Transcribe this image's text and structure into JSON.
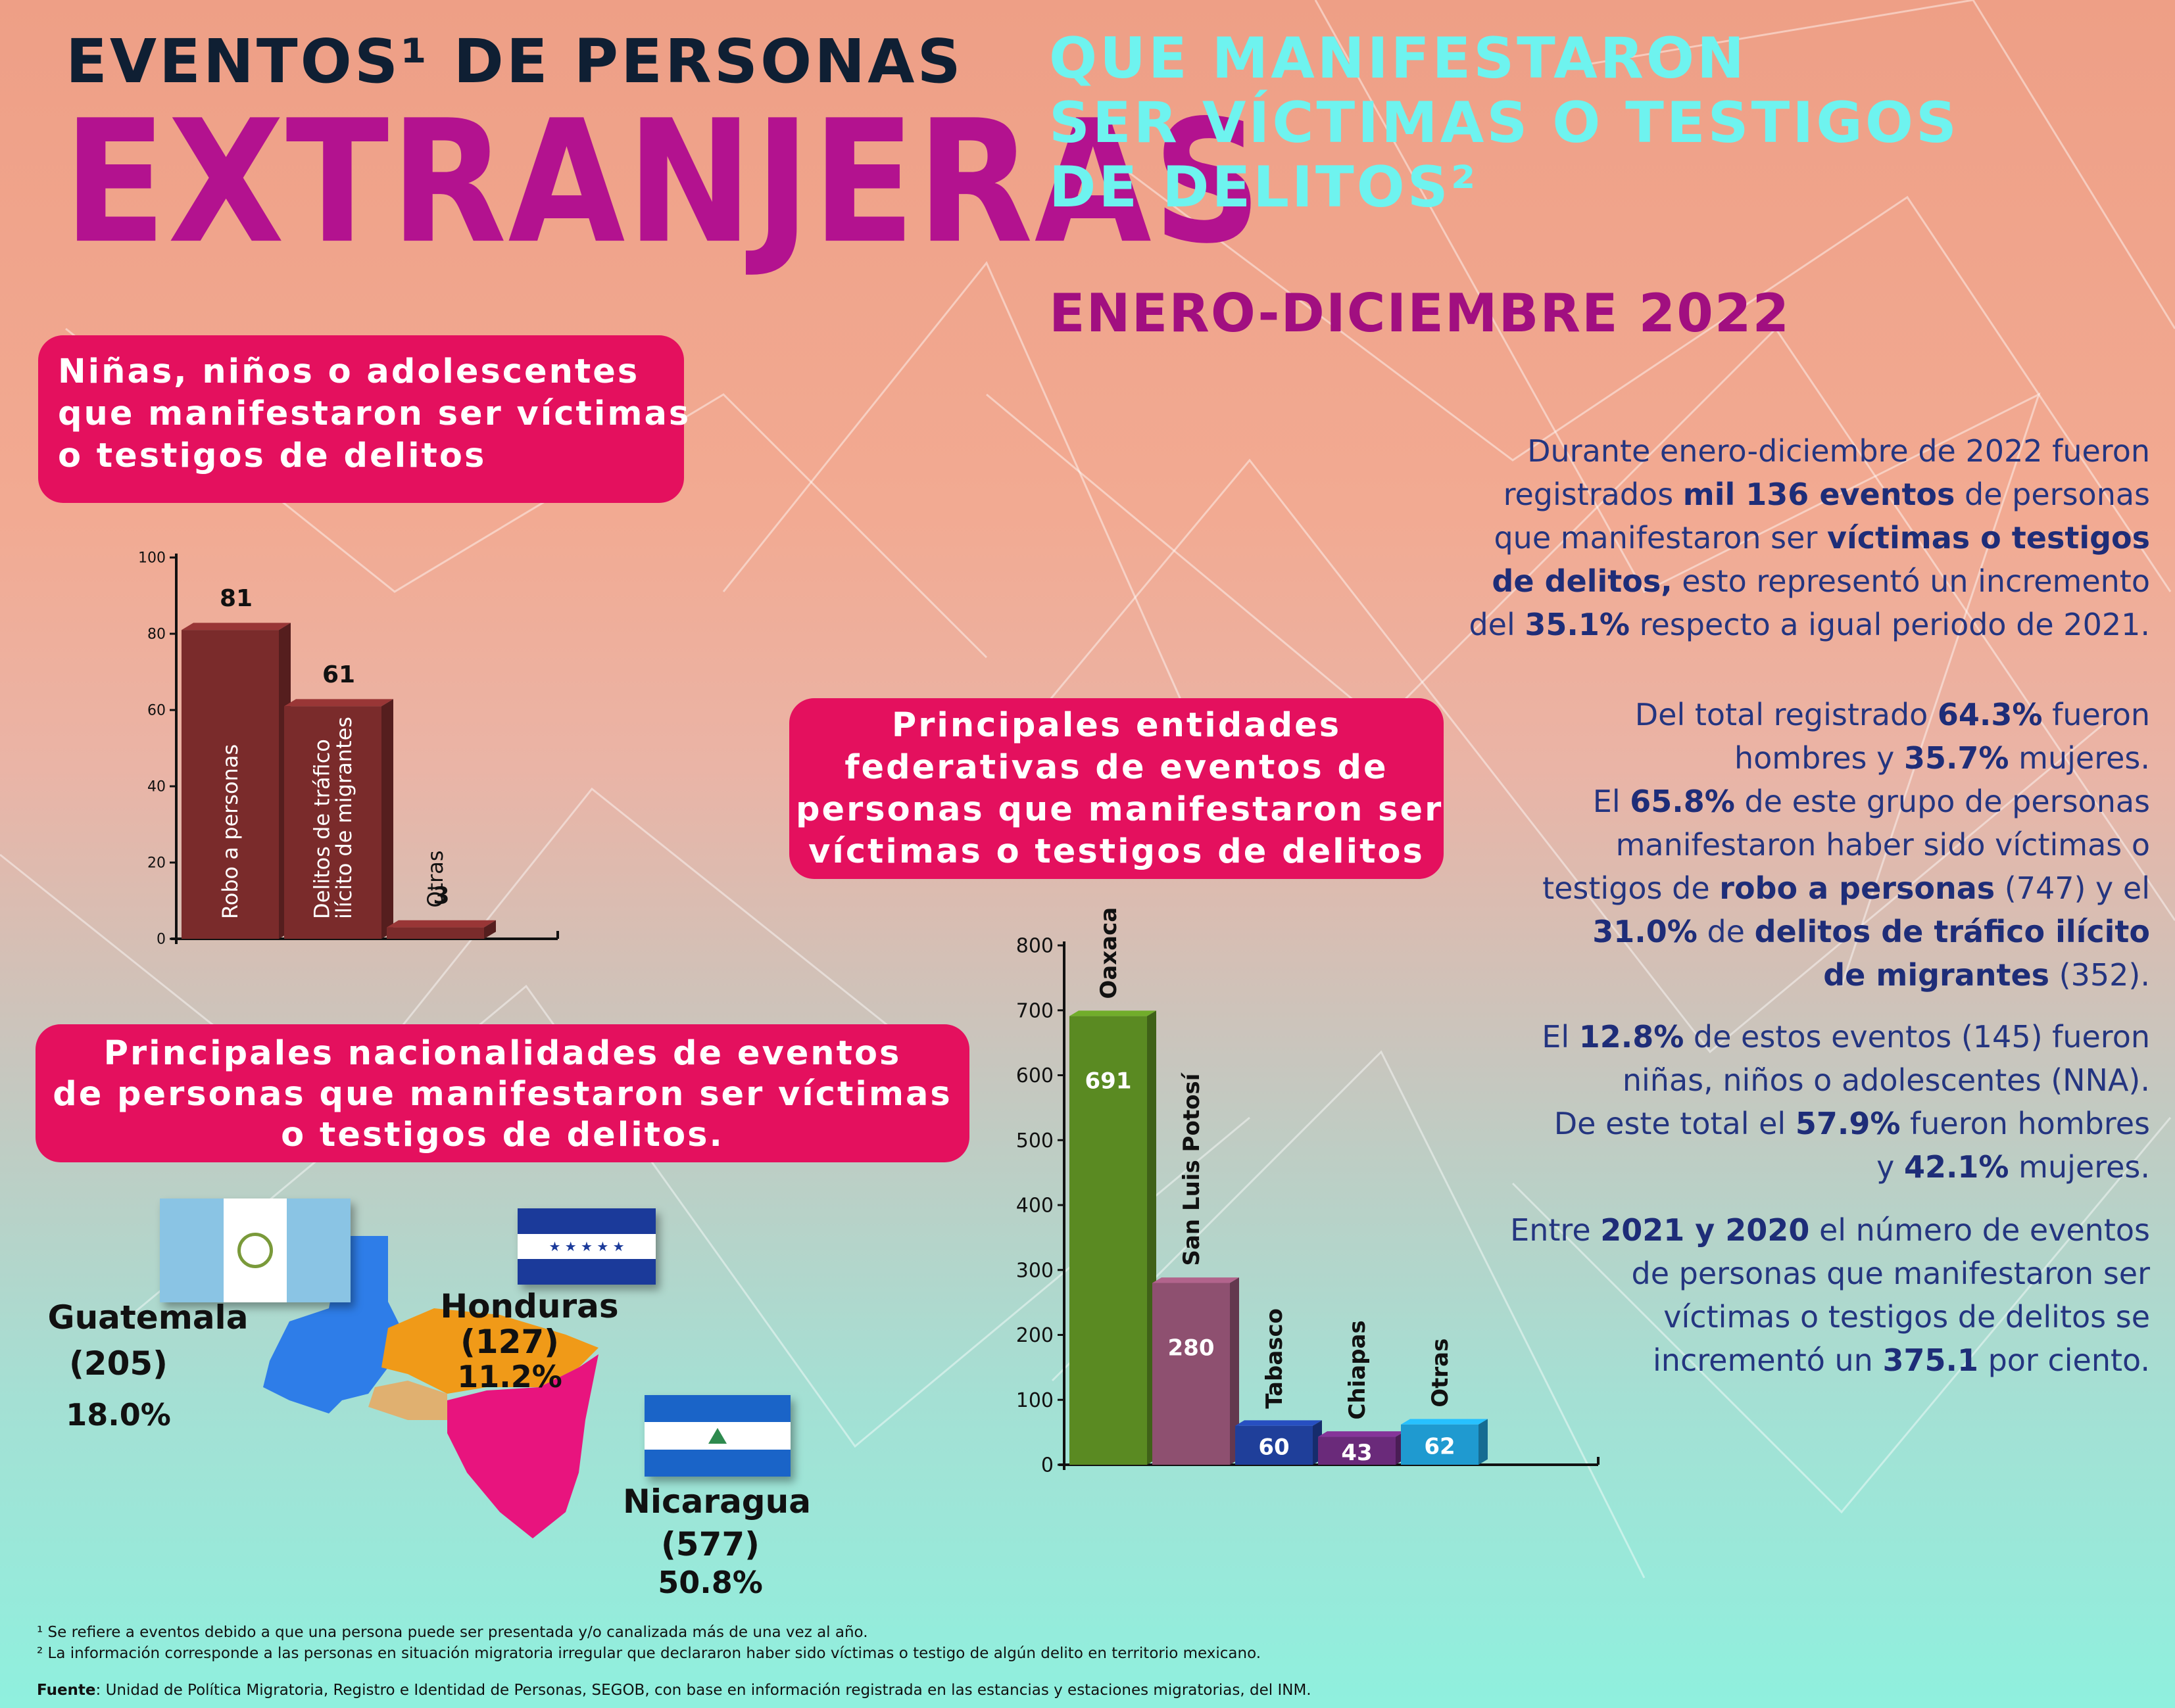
{
  "header": {
    "title_line1": "EVENTOS¹ DE PERSONAS",
    "title_big": "EXTRANJERAS",
    "title_right": [
      "QUE MANIFESTARON",
      "SER VÍCTIMAS O TESTIGOS",
      "DE DELITOS²"
    ],
    "period": "ENERO-DICIEMBRE 2022"
  },
  "sections": {
    "nna_title": [
      "Niñas, niños o adolescentes",
      "que manifestaron ser víctimas",
      "o testigos de delitos"
    ],
    "entities_title": [
      "Principales entidades",
      "federativas de eventos de",
      "personas que manifestaron ser",
      "víctimas o testigos de delitos"
    ],
    "nationalities_title": [
      "Principales nacionalidades de eventos",
      "de personas que manifestaron ser víctimas",
      "o testigos de delitos."
    ]
  },
  "chart_data": [
    {
      "type": "bar",
      "categories": [
        "Robo a personas",
        "Delitos de tráfico ilícito de migrantes",
        "Otras"
      ],
      "category_lines": [
        [
          "Robo a personas"
        ],
        [
          "Delitos de tráfico",
          "ilícito de migrantes"
        ],
        [
          "Otras"
        ]
      ],
      "values": [
        81,
        61,
        3
      ],
      "ylim": [
        0,
        100
      ],
      "yticks": [
        0,
        20,
        40,
        60,
        80,
        100
      ],
      "color": "#7a2b2b"
    },
    {
      "type": "bar",
      "categories": [
        "Oaxaca",
        "San Luis Potosí",
        "Tabasco",
        "Chiapas",
        "Otras"
      ],
      "values": [
        691,
        280,
        60,
        43,
        62
      ],
      "ylim": [
        0,
        800
      ],
      "yticks": [
        0,
        100,
        200,
        300,
        400,
        500,
        600,
        700,
        800
      ],
      "colors": [
        "#5a8a22",
        "#8e5070",
        "#1f3f9a",
        "#6a2a7a",
        "#1f9ad0"
      ]
    }
  ],
  "nationalities": [
    {
      "name": "Guatemala",
      "count": "(205)",
      "pct": "18.0%",
      "color": "#2e7de8"
    },
    {
      "name": "Honduras",
      "count": "(127)",
      "pct": "11.2%",
      "color": "#f09a18"
    },
    {
      "name": "Nicaragua",
      "count": "(577)",
      "pct": "50.8%",
      "color": "#e8147e"
    }
  ],
  "paragraphs": [
    [
      [
        {
          "t": "Durante enero-diciembre de 2022  fueron"
        }
      ],
      [
        {
          "t": "registrados "
        },
        {
          "t": "mil 136 eventos",
          "b": true
        },
        {
          "t": " de personas"
        }
      ],
      [
        {
          "t": "que manifestaron ser "
        },
        {
          "t": "víctimas o testigos",
          "b": true
        }
      ],
      [
        {
          "t": "de delitos,",
          "b": true
        },
        {
          "t": " esto representó un incremento"
        }
      ],
      [
        {
          "t": "del "
        },
        {
          "t": "35.1%",
          "b": true
        },
        {
          "t": " respecto a igual periodo de 2021."
        }
      ]
    ],
    [
      [
        {
          "t": "Del total registrado "
        },
        {
          "t": "64.3%",
          "b": true
        },
        {
          "t": " fueron"
        }
      ],
      [
        {
          "t": "hombres y "
        },
        {
          "t": "35.7%",
          "b": true
        },
        {
          "t": " mujeres."
        }
      ],
      [
        {
          "t": "El "
        },
        {
          "t": "65.8%",
          "b": true
        },
        {
          "t": " de este grupo de personas"
        }
      ],
      [
        {
          "t": "manifestaron haber sido víctimas o"
        }
      ],
      [
        {
          "t": "testigos de "
        },
        {
          "t": "robo a personas",
          "b": true
        },
        {
          "t": " (747) y el"
        }
      ],
      [
        {
          "t": "31.0%",
          "b": true
        },
        {
          "t": " de "
        },
        {
          "t": "delitos de tráfico ilícito",
          "b": true
        }
      ],
      [
        {
          "t": "de migrantes",
          "b": true
        },
        {
          "t": " (352)."
        }
      ]
    ],
    [
      [
        {
          "t": "El "
        },
        {
          "t": "12.8%",
          "b": true
        },
        {
          "t": " de estos eventos (145) fueron"
        }
      ],
      [
        {
          "t": "niñas, niños o adolescentes (NNA)."
        }
      ],
      [
        {
          "t": "De este total el "
        },
        {
          "t": "57.9%",
          "b": true
        },
        {
          "t": " fueron hombres"
        }
      ],
      [
        {
          "t": "y "
        },
        {
          "t": "42.1%",
          "b": true
        },
        {
          "t": " mujeres."
        }
      ]
    ],
    [
      [
        {
          "t": "Entre "
        },
        {
          "t": "2021 y 2020",
          "b": true
        },
        {
          "t": " el número de eventos"
        }
      ],
      [
        {
          "t": "de personas que manifestaron ser"
        }
      ],
      [
        {
          "t": "víctimas o testigos de delitos se"
        }
      ],
      [
        {
          "t": "incrementó un "
        },
        {
          "t": "375.1",
          "b": true
        },
        {
          "t": " por ciento."
        }
      ]
    ]
  ],
  "footnotes": {
    "note1": "¹ Se refiere a eventos debido a que una persona puede ser presentada y/o canalizada más de una vez al año.",
    "note2": "² La información corresponde a las personas en situación migratoria irregular que declararon haber sido víctimas o testigo de algún delito en territorio mexicano.",
    "source_label": "Fuente",
    "source_text": ": Unidad de Política Migratoria, Registro e Identidad de Personas, SEGOB, con base en información registrada en las estancias y estaciones migratorias, del INM."
  },
  "colors": {
    "accent_pink": "#e4105e",
    "title_magenta": "#b3128f",
    "title_cyan": "#6ef3ef",
    "text_blue": "#243580"
  }
}
